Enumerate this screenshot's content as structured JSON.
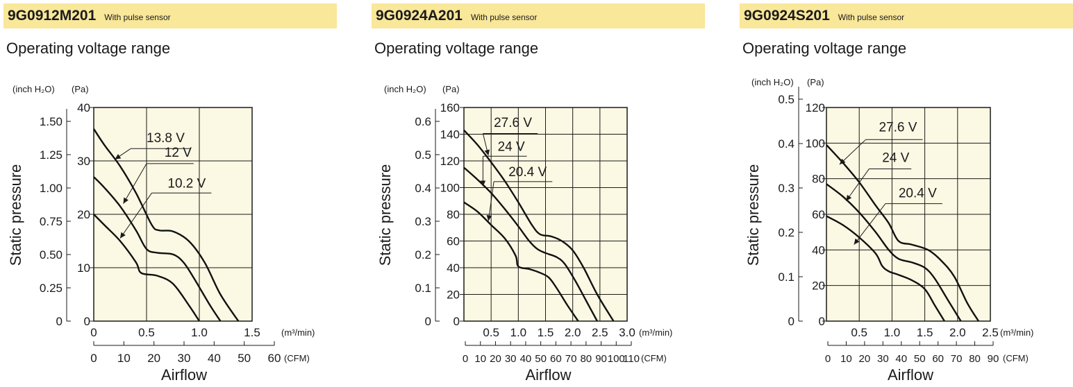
{
  "panels": [
    {
      "model": "9G0912M201",
      "note": "With pulse sensor",
      "subtitle": "Operating voltage range",
      "chart_data": {
        "type": "line",
        "ylabel": "Static pressure",
        "xlabel": "Airflow",
        "y_units": [
          "(inch H₂O)",
          "(Pa)"
        ],
        "x_unit_primary": "(m³/min)",
        "x_unit_secondary": "(CFM)",
        "xlim": [
          0,
          1.5
        ],
        "x_ticks": [
          0,
          0.5,
          1.0,
          1.5
        ],
        "x_tick_labels": [
          "0",
          "0.5",
          "1.0",
          "1.5"
        ],
        "ylim": [
          0,
          40
        ],
        "y_ticks_pa": [
          0,
          10,
          20,
          30,
          40
        ],
        "y_ticks_inch": [
          0,
          0.25,
          0.5,
          0.75,
          1.0,
          1.25,
          1.5
        ],
        "y_tick_labels_inch": [
          "0",
          "0.25",
          "0.50",
          "0.75",
          "1.00",
          "1.25",
          "1.50"
        ],
        "cfm_ticks": [
          0,
          10,
          20,
          30,
          40,
          50,
          60
        ],
        "grid": true,
        "series": [
          {
            "name": "13.8 V",
            "x": [
              0,
              0.1,
              0.25,
              0.4,
              0.55,
              0.62,
              0.75,
              0.9,
              1.05,
              1.2,
              1.37
            ],
            "y": [
              36,
              33,
              29,
              24,
              18,
              17,
              16.8,
              15,
              11,
              5,
              0
            ]
          },
          {
            "name": "12 V",
            "x": [
              0,
              0.1,
              0.25,
              0.4,
              0.5,
              0.6,
              0.75,
              0.85,
              0.95,
              1.1,
              1.2
            ],
            "y": [
              27,
              25,
              21.5,
              17,
              13.5,
              12.8,
              12.5,
              11,
              8,
              3,
              0
            ]
          },
          {
            "name": "10.2 V",
            "x": [
              0,
              0.1,
              0.25,
              0.4,
              0.45,
              0.6,
              0.75,
              0.9,
              1.0
            ],
            "y": [
              20,
              18,
              15,
              11,
              9,
              8.5,
              7,
              3,
              0
            ]
          }
        ],
        "labels": [
          {
            "text": "13.8 V",
            "at": [
              0.5,
              33.5
            ],
            "to": [
              0.35,
              32.3
            ],
            "tip": [
              0.2,
              30.3
            ]
          },
          {
            "text": "12 V",
            "at": [
              0.67,
              30.8
            ],
            "to": [
              0.5,
              29.5
            ],
            "tip": [
              0.28,
              22
            ]
          },
          {
            "text": "10.2 V",
            "at": [
              0.7,
              25
            ],
            "to": [
              0.55,
              24
            ],
            "tip": [
              0.25,
              15.5
            ]
          }
        ]
      }
    },
    {
      "model": "9G0924A201",
      "note": "With pulse sensor",
      "subtitle": "Operating voltage range",
      "chart_data": {
        "type": "line",
        "ylabel": "Static pressure",
        "xlabel": "Airflow",
        "y_units": [
          "(inch H₂O)",
          "(Pa)"
        ],
        "x_unit_primary": "(m³/min)",
        "x_unit_secondary": "(CFM)",
        "xlim": [
          0,
          3.0
        ],
        "x_ticks": [
          0.5,
          1.0,
          1.5,
          2.0,
          2.5,
          3.0
        ],
        "x_tick_labels": [
          "0.5",
          "1.0",
          "1.5",
          "2.0",
          "2.5",
          "3.0"
        ],
        "ylim": [
          0,
          160
        ],
        "y_ticks_pa": [
          0,
          20,
          40,
          60,
          80,
          100,
          120,
          140,
          160
        ],
        "y_ticks_inch": [
          0,
          0.1,
          0.2,
          0.3,
          0.4,
          0.5,
          0.6
        ],
        "y_tick_labels_inch": [
          "0",
          "0.1",
          "0.2",
          "0.3",
          "0.4",
          "0.5",
          "0.6"
        ],
        "cfm_ticks": [
          0,
          10,
          20,
          30,
          40,
          50,
          60,
          70,
          80,
          90,
          100,
          110
        ],
        "grid": true,
        "series": [
          {
            "name": "27.6 V",
            "x": [
              0,
              0.25,
              0.5,
              0.75,
              1.0,
              1.25,
              1.4,
              1.6,
              1.8,
              2.0,
              2.2,
              2.45,
              2.75
            ],
            "y": [
              143,
              132,
              119,
              105,
              89,
              72,
              65,
              63.5,
              60,
              53,
              40,
              20,
              0
            ]
          },
          {
            "name": "24 V",
            "x": [
              0,
              0.25,
              0.5,
              0.75,
              1.0,
              1.2,
              1.35,
              1.5,
              1.7,
              1.85,
              2.05,
              2.25,
              2.45
            ],
            "y": [
              115,
              106,
              96,
              84,
              71,
              60,
              54,
              51,
              48,
              43,
              30,
              15,
              0
            ]
          },
          {
            "name": "20.4 V",
            "x": [
              0,
              0.25,
              0.5,
              0.75,
              0.95,
              1.0,
              1.2,
              1.35,
              1.55,
              1.7,
              1.9,
              2.1
            ],
            "y": [
              89,
              82,
              72,
              62,
              49,
              41,
              39,
              37,
              33,
              25,
              12,
              0
            ]
          }
        ],
        "labels": [
          {
            "text": "27.6 V",
            "at": [
              0.55,
              145.5
            ],
            "to": [
              0.35,
              140.5
            ],
            "tip": [
              0.45,
              124
            ]
          },
          {
            "text": "24 V",
            "at": [
              0.62,
              127.5
            ],
            "to": [
              0.35,
              123.5
            ],
            "tip": [
              0.35,
              101
            ]
          },
          {
            "text": "20.4 V",
            "at": [
              0.82,
              108.5
            ],
            "to": [
              0.55,
              104.5
            ],
            "tip": [
              0.45,
              75
            ]
          }
        ]
      }
    },
    {
      "model": "9G0924S201",
      "note": "With pulse sensor",
      "subtitle": "Operating voltage range",
      "chart_data": {
        "type": "line",
        "ylabel": "Static pressure",
        "xlabel": "Airflow",
        "y_units": [
          "(inch H₂O)",
          "(Pa)"
        ],
        "x_unit_primary": "(m³/min)",
        "x_unit_secondary": "(CFM)",
        "xlim": [
          0,
          2.5
        ],
        "x_ticks": [
          0.5,
          1.0,
          1.5,
          2.0,
          2.5
        ],
        "x_tick_labels": [
          "0.5",
          "1.0",
          "1.5",
          "2.0",
          "2.5"
        ],
        "ylim": [
          0,
          120
        ],
        "y_ticks_pa": [
          0,
          20,
          40,
          60,
          80,
          100,
          120
        ],
        "y_ticks_inch": [
          0,
          0.1,
          0.2,
          0.3,
          0.4,
          0.5
        ],
        "y_tick_labels_inch": [
          "0",
          "0.1",
          "0.2",
          "0.3",
          "0.4",
          "0.5"
        ],
        "cfm_ticks": [
          0,
          10,
          20,
          30,
          40,
          50,
          60,
          70,
          80,
          90
        ],
        "grid": true,
        "series": [
          {
            "name": "27.6 V",
            "x": [
              0,
              0.25,
              0.5,
              0.75,
              0.95,
              1.1,
              1.3,
              1.55,
              1.75,
              1.95,
              2.15,
              2.32
            ],
            "y": [
              99,
              89,
              78,
              65,
              55,
              45,
              43,
              40,
              34,
              25,
              10,
              0
            ]
          },
          {
            "name": "24 V",
            "x": [
              0,
              0.25,
              0.5,
              0.75,
              0.95,
              1.1,
              1.3,
              1.5,
              1.65,
              1.85,
              2.05
            ],
            "y": [
              77,
              70,
              61,
              50,
              40,
              35,
              33,
              30,
              24,
              12,
              0
            ]
          },
          {
            "name": "20.4 V",
            "x": [
              0,
              0.25,
              0.5,
              0.75,
              0.85,
              0.95,
              1.1,
              1.3,
              1.5,
              1.65,
              1.8
            ],
            "y": [
              59,
              54,
              47,
              38,
              31,
              28,
              26,
              23,
              18,
              9,
              0
            ]
          }
        ],
        "labels": [
          {
            "text": "27.6 V",
            "at": [
              0.8,
              106.5
            ],
            "to": [
              0.6,
              102
            ],
            "tip": [
              0.2,
              88
            ]
          },
          {
            "text": "24 V",
            "at": [
              0.85,
              89.5
            ],
            "to": [
              0.65,
              85.5
            ],
            "tip": [
              0.3,
              67.5
            ]
          },
          {
            "text": "20.4 V",
            "at": [
              1.1,
              69.5
            ],
            "to": [
              0.9,
              66
            ],
            "tip": [
              0.42,
              43
            ]
          }
        ]
      }
    }
  ]
}
